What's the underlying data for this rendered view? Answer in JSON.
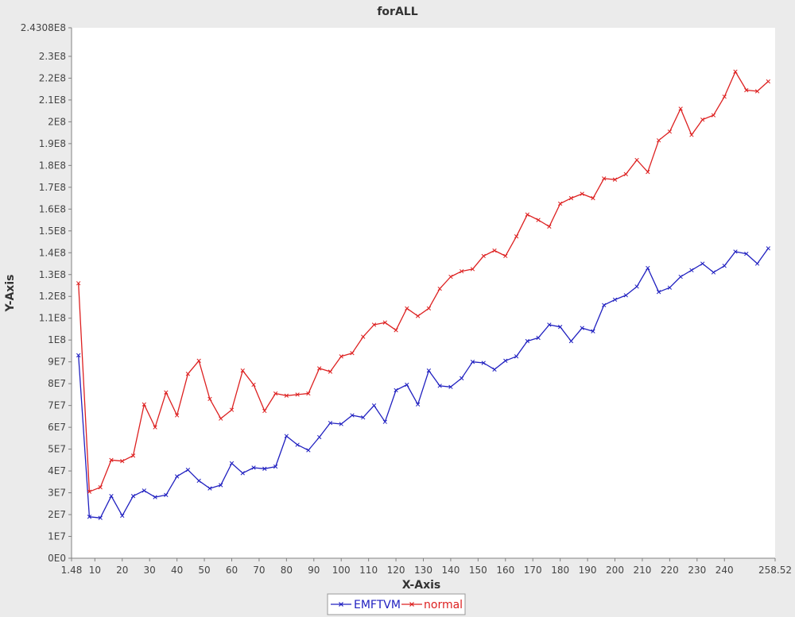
{
  "chart_data": {
    "type": "line",
    "title": "forALL",
    "xlabel": "X-Axis",
    "ylabel": "Y-Axis",
    "xlim": [
      1.48,
      258.52
    ],
    "ylim": [
      0,
      243080000
    ],
    "grid": false,
    "legend_placement": "bottom-center",
    "x_ticks": [
      10,
      20,
      30,
      40,
      50,
      60,
      70,
      80,
      90,
      100,
      110,
      120,
      130,
      140,
      150,
      160,
      170,
      180,
      190,
      200,
      210,
      220,
      230,
      240
    ],
    "x_tick_labels": [
      "10",
      "20",
      "30",
      "40",
      "50",
      "60",
      "70",
      "80",
      "90",
      "100",
      "110",
      "120",
      "130",
      "140",
      "150",
      "160",
      "170",
      "180",
      "190",
      "200",
      "210",
      "220",
      "230",
      "240"
    ],
    "x_edge_labels": [
      "1.48",
      "258.52"
    ],
    "y_ticks": [
      0,
      10000000,
      20000000,
      30000000,
      40000000,
      50000000,
      60000000,
      70000000,
      80000000,
      90000000,
      100000000,
      110000000,
      120000000,
      130000000,
      140000000,
      150000000,
      160000000,
      170000000,
      180000000,
      190000000,
      200000000,
      210000000,
      220000000,
      230000000
    ],
    "y_tick_labels": [
      "0E0",
      "1E7",
      "2E7",
      "3E7",
      "4E7",
      "5E7",
      "6E7",
      "7E7",
      "8E7",
      "9E7",
      "1E8",
      "1.1E8",
      "1.2E8",
      "1.3E8",
      "1.4E8",
      "1.5E8",
      "1.6E8",
      "1.7E8",
      "1.8E8",
      "1.9E8",
      "2E8",
      "2.1E8",
      "2.2E8",
      "2.3E8"
    ],
    "y_top_label": "2.4308E8",
    "x": [
      4,
      8,
      12,
      16,
      20,
      24,
      28,
      32,
      36,
      40,
      44,
      48,
      52,
      56,
      60,
      64,
      68,
      72,
      76,
      80,
      84,
      88,
      92,
      96,
      100,
      104,
      108,
      112,
      116,
      120,
      124,
      128,
      132,
      136,
      140,
      144,
      148,
      152,
      156,
      160,
      164,
      168,
      172,
      176,
      180,
      184,
      188,
      192,
      196,
      200,
      204,
      208,
      212,
      216,
      220,
      224,
      228,
      232,
      236,
      240,
      244,
      248,
      252,
      256
    ],
    "series": [
      {
        "name": "EMFTVM",
        "color": "#2020c0",
        "values": [
          93000000,
          19000000,
          18500000,
          28500000,
          19500000,
          28500000,
          31000000,
          28000000,
          29000000,
          37500000,
          40500000,
          35500000,
          32000000,
          33500000,
          43500000,
          39000000,
          41500000,
          41000000,
          42000000,
          56000000,
          52000000,
          49500000,
          55500000,
          62000000,
          61500000,
          65500000,
          64500000,
          70000000,
          62500000,
          77000000,
          79500000,
          70500000,
          86000000,
          79000000,
          78500000,
          82500000,
          90000000,
          89500000,
          86500000,
          90500000,
          92500000,
          99500000,
          101000000,
          107000000,
          106000000,
          99500000,
          105500000,
          104000000,
          116000000,
          118500000,
          120500000,
          124500000,
          133000000,
          122000000,
          124000000,
          129000000,
          132000000,
          135000000,
          131000000,
          134000000,
          140500000,
          139500000,
          135000000,
          142000000
        ]
      },
      {
        "name": "normal",
        "color": "#dd2020",
        "values": [
          126000000,
          30500000,
          32500000,
          45000000,
          44500000,
          47000000,
          70500000,
          60000000,
          76000000,
          65500000,
          84500000,
          90500000,
          73000000,
          64000000,
          68000000,
          86000000,
          79500000,
          67500000,
          75500000,
          74500000,
          75000000,
          75500000,
          87000000,
          85500000,
          92500000,
          94000000,
          101500000,
          107000000,
          108000000,
          104500000,
          114500000,
          111000000,
          114500000,
          123500000,
          129000000,
          131500000,
          132500000,
          138500000,
          141000000,
          138500000,
          147500000,
          157500000,
          155000000,
          152000000,
          162500000,
          165000000,
          167000000,
          165000000,
          174000000,
          173500000,
          176000000,
          182500000,
          177000000,
          191500000,
          195500000,
          206000000,
          194000000,
          201000000,
          203000000,
          211500000,
          223000000,
          214500000,
          214000000,
          218500000
        ]
      }
    ]
  }
}
